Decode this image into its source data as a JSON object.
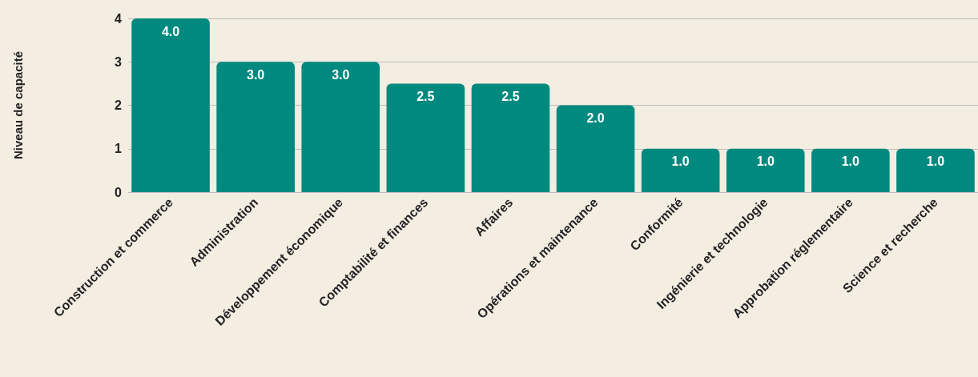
{
  "chart_data": {
    "type": "bar",
    "ylabel": "Niveau de capacité",
    "categories": [
      "Construction et commerce",
      "Administration",
      "Développement économique",
      "Comptabilité et finances",
      "Affaires",
      "Opérations et maintenance",
      "Conformité",
      "Ingénierie et technologie",
      "Approbation réglementaire",
      "Science et recherche"
    ],
    "values": [
      4.0,
      3.0,
      3.0,
      2.5,
      2.5,
      2.0,
      1.0,
      1.0,
      1.0,
      1.0
    ],
    "color": "#00897e",
    "value_labels": [
      "4.0",
      "3.0",
      "3.0",
      "2.5",
      "2.5",
      "2.0",
      "1.0",
      "1.0",
      "1.0",
      "1.0"
    ],
    "ylim": [
      0,
      4
    ],
    "yticks": [
      0,
      1,
      2,
      3,
      4
    ],
    "grid": "y"
  }
}
